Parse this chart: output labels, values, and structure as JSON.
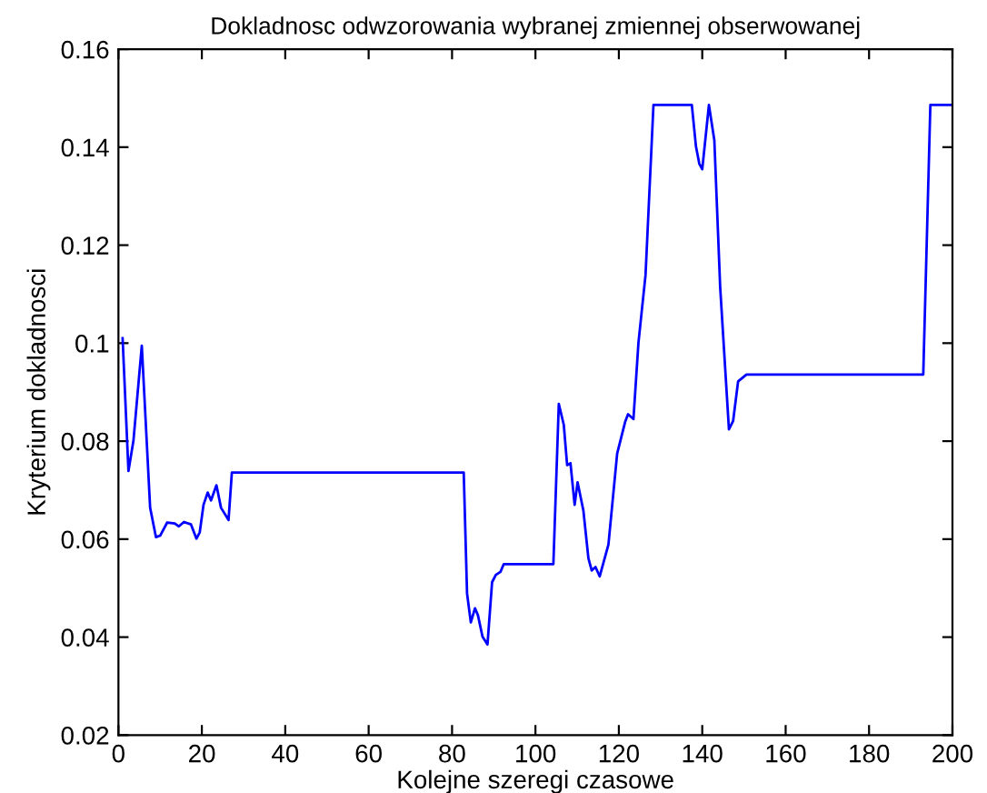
{
  "chart_data": {
    "type": "line",
    "title": "Dokladnosc odwzorowania wybranej zmiennej obserwowanej",
    "xlabel": "Kolejne szeregi czasowe",
    "ylabel": "Kryterium dokladnosci",
    "x": [
      1,
      2.4,
      3.6,
      5.6,
      7.6,
      9,
      10,
      11.7,
      13.5,
      14.5,
      15.7,
      17.4,
      18.7,
      19.5,
      20.4,
      21.4,
      22.2,
      23.5,
      24.6,
      26.4,
      27.2,
      82.8,
      83.6,
      84.5,
      85.5,
      86.2,
      87.3,
      88.5,
      89.6,
      90.5,
      91.6,
      92.4,
      104.3,
      105.6,
      106.8,
      107.6,
      108.4,
      109.4,
      110.1,
      111.5,
      112.7,
      113.5,
      114.4,
      115.4,
      117.5,
      119.6,
      121.5,
      122.2,
      123.5,
      124.7,
      126.4,
      128.3,
      137.5,
      138.5,
      139.3,
      140,
      141.6,
      142.9,
      144.3,
      146.4,
      147.4,
      148.6,
      150.6,
      193,
      194.7,
      200
    ],
    "series": [
      {
        "color": "#0000ff",
        "values": [
          0.101,
          0.0739,
          0.0801,
          0.0995,
          0.0664,
          0.0604,
          0.0607,
          0.0634,
          0.0632,
          0.0626,
          0.0635,
          0.063,
          0.0601,
          0.0614,
          0.067,
          0.0695,
          0.0679,
          0.071,
          0.0664,
          0.0639,
          0.0736,
          0.0736,
          0.0489,
          0.043,
          0.0459,
          0.0445,
          0.0401,
          0.0385,
          0.0512,
          0.0527,
          0.0533,
          0.0549,
          0.0549,
          0.0876,
          0.0833,
          0.0751,
          0.0755,
          0.067,
          0.0716,
          0.0658,
          0.0561,
          0.0536,
          0.0543,
          0.0524,
          0.0589,
          0.0775,
          0.0839,
          0.0855,
          0.0845,
          0.1001,
          0.1139,
          0.1486,
          0.1486,
          0.1401,
          0.1366,
          0.1355,
          0.1486,
          0.1414,
          0.1114,
          0.0824,
          0.0841,
          0.0922,
          0.0936,
          0.0936,
          0.1486,
          0.1486
        ]
      }
    ],
    "xlim": [
      0,
      200
    ],
    "xticks": [
      0,
      20,
      40,
      60,
      80,
      100,
      120,
      140,
      160,
      180,
      200
    ],
    "ylim": [
      0.02,
      0.16
    ],
    "yticks": [
      0.02,
      0.04,
      0.06,
      0.08,
      0.1,
      0.12,
      0.14,
      0.16
    ],
    "grid": false,
    "legend": false
  }
}
